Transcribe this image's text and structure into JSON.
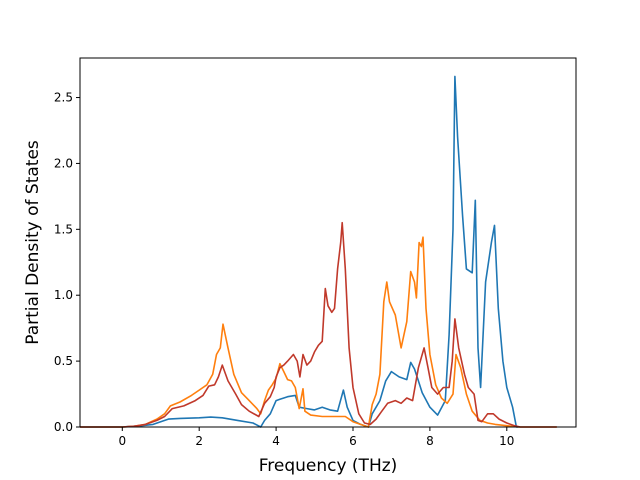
{
  "chart_data": {
    "type": "line",
    "title": "",
    "xlabel": "Frequency (THz)",
    "ylabel": "Partial Density of States",
    "xlim": [
      -1.1,
      11.8
    ],
    "ylim": [
      0,
      2.8
    ],
    "xticks": [
      0,
      2,
      4,
      6,
      8,
      10
    ],
    "xtick_labels": [
      "0",
      "2",
      "4",
      "6",
      "8",
      "10"
    ],
    "yticks": [
      0.0,
      0.5,
      1.0,
      1.5,
      2.0,
      2.5
    ],
    "ytick_labels": [
      "0.0",
      "0.5",
      "1.0",
      "1.5",
      "2.0",
      "2.5"
    ],
    "grid": false,
    "legend": "none",
    "series": [
      {
        "color": "#1f77b4",
        "points": [
          [
            -1.1,
            0
          ],
          [
            0,
            0
          ],
          [
            0.5,
            0.01
          ],
          [
            0.8,
            0.02
          ],
          [
            1.0,
            0.04
          ],
          [
            1.2,
            0.06
          ],
          [
            1.5,
            0.065
          ],
          [
            2.0,
            0.07
          ],
          [
            2.3,
            0.075
          ],
          [
            2.6,
            0.07
          ],
          [
            3.0,
            0.05
          ],
          [
            3.4,
            0.03
          ],
          [
            3.6,
            0.0
          ],
          [
            3.7,
            0.05
          ],
          [
            3.85,
            0.1
          ],
          [
            4.0,
            0.2
          ],
          [
            4.1,
            0.21
          ],
          [
            4.2,
            0.22
          ],
          [
            4.3,
            0.23
          ],
          [
            4.5,
            0.24
          ],
          [
            4.6,
            0.15
          ],
          [
            4.8,
            0.14
          ],
          [
            5.0,
            0.13
          ],
          [
            5.2,
            0.15
          ],
          [
            5.4,
            0.13
          ],
          [
            5.6,
            0.12
          ],
          [
            5.75,
            0.28
          ],
          [
            5.85,
            0.15
          ],
          [
            6.0,
            0.05
          ],
          [
            6.2,
            0.02
          ],
          [
            6.4,
            0.0
          ],
          [
            6.5,
            0.1
          ],
          [
            6.7,
            0.2
          ],
          [
            6.85,
            0.35
          ],
          [
            7.0,
            0.42
          ],
          [
            7.2,
            0.38
          ],
          [
            7.4,
            0.36
          ],
          [
            7.5,
            0.49
          ],
          [
            7.6,
            0.44
          ],
          [
            7.7,
            0.35
          ],
          [
            7.8,
            0.26
          ],
          [
            8.0,
            0.15
          ],
          [
            8.2,
            0.09
          ],
          [
            8.4,
            0.2
          ],
          [
            8.5,
            0.7
          ],
          [
            8.6,
            1.5
          ],
          [
            8.65,
            2.66
          ],
          [
            8.72,
            2.2
          ],
          [
            8.85,
            1.6
          ],
          [
            8.95,
            1.2
          ],
          [
            9.1,
            1.17
          ],
          [
            9.18,
            1.72
          ],
          [
            9.25,
            0.6
          ],
          [
            9.32,
            0.3
          ],
          [
            9.45,
            1.1
          ],
          [
            9.6,
            1.4
          ],
          [
            9.68,
            1.53
          ],
          [
            9.78,
            0.9
          ],
          [
            9.9,
            0.5
          ],
          [
            10.0,
            0.3
          ],
          [
            10.15,
            0.15
          ],
          [
            10.25,
            0.0
          ],
          [
            10.3,
            0.0
          ]
        ]
      },
      {
        "color": "#ff7f0e",
        "points": [
          [
            -1.1,
            0
          ],
          [
            0,
            0
          ],
          [
            0.3,
            0.005
          ],
          [
            0.6,
            0.02
          ],
          [
            0.9,
            0.06
          ],
          [
            1.1,
            0.1
          ],
          [
            1.25,
            0.16
          ],
          [
            1.5,
            0.19
          ],
          [
            1.8,
            0.24
          ],
          [
            2.0,
            0.28
          ],
          [
            2.2,
            0.32
          ],
          [
            2.35,
            0.4
          ],
          [
            2.45,
            0.55
          ],
          [
            2.55,
            0.6
          ],
          [
            2.62,
            0.78
          ],
          [
            2.75,
            0.6
          ],
          [
            2.9,
            0.4
          ],
          [
            3.1,
            0.26
          ],
          [
            3.3,
            0.2
          ],
          [
            3.5,
            0.14
          ],
          [
            3.6,
            0.1
          ],
          [
            3.7,
            0.2
          ],
          [
            3.8,
            0.28
          ],
          [
            3.9,
            0.32
          ],
          [
            4.0,
            0.37
          ],
          [
            4.1,
            0.48
          ],
          [
            4.2,
            0.42
          ],
          [
            4.3,
            0.36
          ],
          [
            4.4,
            0.35
          ],
          [
            4.5,
            0.3
          ],
          [
            4.6,
            0.14
          ],
          [
            4.7,
            0.29
          ],
          [
            4.75,
            0.12
          ],
          [
            4.9,
            0.09
          ],
          [
            5.2,
            0.08
          ],
          [
            5.5,
            0.08
          ],
          [
            5.8,
            0.08
          ],
          [
            6.0,
            0.04
          ],
          [
            6.3,
            0.01
          ],
          [
            6.4,
            0.0
          ],
          [
            6.5,
            0.17
          ],
          [
            6.6,
            0.25
          ],
          [
            6.7,
            0.4
          ],
          [
            6.8,
            0.95
          ],
          [
            6.88,
            1.1
          ],
          [
            6.95,
            0.95
          ],
          [
            7.1,
            0.85
          ],
          [
            7.25,
            0.6
          ],
          [
            7.4,
            0.8
          ],
          [
            7.5,
            1.18
          ],
          [
            7.6,
            1.1
          ],
          [
            7.65,
            0.98
          ],
          [
            7.72,
            1.4
          ],
          [
            7.78,
            1.37
          ],
          [
            7.82,
            1.44
          ],
          [
            7.9,
            0.9
          ],
          [
            8.0,
            0.55
          ],
          [
            8.15,
            0.32
          ],
          [
            8.3,
            0.22
          ],
          [
            8.45,
            0.18
          ],
          [
            8.6,
            0.25
          ],
          [
            8.68,
            0.55
          ],
          [
            8.8,
            0.45
          ],
          [
            8.95,
            0.25
          ],
          [
            9.1,
            0.12
          ],
          [
            9.3,
            0.05
          ],
          [
            9.5,
            0.03
          ],
          [
            9.7,
            0.02
          ],
          [
            10.0,
            0.01
          ],
          [
            10.3,
            0.0
          ],
          [
            11.3,
            0.0
          ]
        ]
      },
      {
        "color": "#c0392b",
        "points": [
          [
            -1.1,
            0
          ],
          [
            0,
            0
          ],
          [
            0.3,
            0.005
          ],
          [
            0.6,
            0.02
          ],
          [
            0.9,
            0.05
          ],
          [
            1.1,
            0.08
          ],
          [
            1.3,
            0.14
          ],
          [
            1.6,
            0.16
          ],
          [
            1.9,
            0.2
          ],
          [
            2.1,
            0.24
          ],
          [
            2.25,
            0.31
          ],
          [
            2.4,
            0.32
          ],
          [
            2.5,
            0.38
          ],
          [
            2.6,
            0.47
          ],
          [
            2.75,
            0.35
          ],
          [
            2.95,
            0.25
          ],
          [
            3.1,
            0.17
          ],
          [
            3.3,
            0.12
          ],
          [
            3.55,
            0.08
          ],
          [
            3.7,
            0.18
          ],
          [
            3.85,
            0.23
          ],
          [
            3.95,
            0.3
          ],
          [
            4.0,
            0.38
          ],
          [
            4.1,
            0.45
          ],
          [
            4.2,
            0.47
          ],
          [
            4.3,
            0.5
          ],
          [
            4.45,
            0.55
          ],
          [
            4.55,
            0.5
          ],
          [
            4.62,
            0.38
          ],
          [
            4.7,
            0.55
          ],
          [
            4.8,
            0.47
          ],
          [
            4.9,
            0.5
          ],
          [
            5.0,
            0.57
          ],
          [
            5.1,
            0.62
          ],
          [
            5.2,
            0.65
          ],
          [
            5.28,
            1.05
          ],
          [
            5.35,
            0.92
          ],
          [
            5.45,
            0.87
          ],
          [
            5.52,
            0.9
          ],
          [
            5.6,
            1.2
          ],
          [
            5.68,
            1.4
          ],
          [
            5.72,
            1.55
          ],
          [
            5.8,
            1.2
          ],
          [
            5.9,
            0.6
          ],
          [
            6.0,
            0.3
          ],
          [
            6.15,
            0.1
          ],
          [
            6.3,
            0.03
          ],
          [
            6.45,
            0.02
          ],
          [
            6.6,
            0.06
          ],
          [
            6.75,
            0.12
          ],
          [
            6.9,
            0.18
          ],
          [
            7.1,
            0.2
          ],
          [
            7.25,
            0.18
          ],
          [
            7.4,
            0.22
          ],
          [
            7.55,
            0.2
          ],
          [
            7.7,
            0.45
          ],
          [
            7.85,
            0.6
          ],
          [
            7.95,
            0.45
          ],
          [
            8.05,
            0.3
          ],
          [
            8.2,
            0.25
          ],
          [
            8.35,
            0.3
          ],
          [
            8.5,
            0.3
          ],
          [
            8.58,
            0.5
          ],
          [
            8.65,
            0.82
          ],
          [
            8.75,
            0.6
          ],
          [
            8.9,
            0.4
          ],
          [
            9.0,
            0.3
          ],
          [
            9.15,
            0.25
          ],
          [
            9.25,
            0.05
          ],
          [
            9.35,
            0.04
          ],
          [
            9.5,
            0.1
          ],
          [
            9.65,
            0.1
          ],
          [
            9.8,
            0.06
          ],
          [
            10.0,
            0.03
          ],
          [
            10.2,
            0.01
          ],
          [
            10.35,
            0.0
          ],
          [
            11.3,
            0.0
          ]
        ]
      }
    ]
  }
}
